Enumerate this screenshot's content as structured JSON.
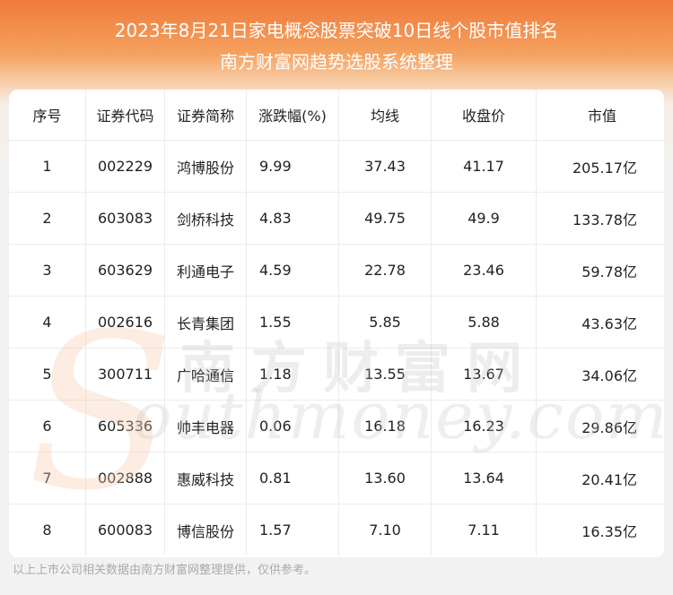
{
  "header": {
    "title_line1": "2023年8月21日家电概念股票突破10日线个股市值排名",
    "title_line2": "南方财富网趋势选股系统整理"
  },
  "table": {
    "columns": [
      "序号",
      "证券代码",
      "证券简称",
      "涨跌幅(%)",
      "均线",
      "收盘价",
      "市值"
    ],
    "rows": [
      [
        "1",
        "002229",
        "鸿博股份",
        "9.99",
        "37.43",
        "41.17",
        "205.17亿"
      ],
      [
        "2",
        "603083",
        "剑桥科技",
        "4.83",
        "49.75",
        "49.9",
        "133.78亿"
      ],
      [
        "3",
        "603629",
        "利通电子",
        "4.59",
        "22.78",
        "23.46",
        "59.78亿"
      ],
      [
        "4",
        "002616",
        "长青集团",
        "1.55",
        "5.85",
        "5.88",
        "43.63亿"
      ],
      [
        "5",
        "300711",
        "广哈通信",
        "1.18",
        "13.55",
        "13.67",
        "34.06亿"
      ],
      [
        "6",
        "605336",
        "帅丰电器",
        "0.06",
        "16.18",
        "16.23",
        "29.86亿"
      ],
      [
        "7",
        "002888",
        "惠威科技",
        "0.81",
        "13.60",
        "13.64",
        "20.41亿"
      ],
      [
        "8",
        "600083",
        "博信股份",
        "1.57",
        "7.10",
        "7.11",
        "16.35亿"
      ]
    ]
  },
  "watermark": {
    "chinese": "南方财富网",
    "english": "outhmoney.com",
    "s_letter": "S"
  },
  "footer": {
    "note": "以上上市公司相关数据由南方财富网整理提供，仅供参考。"
  },
  "colors": {
    "header_orange": "#ef7a3b",
    "background": "#f2f2f2",
    "text": "#222222"
  }
}
